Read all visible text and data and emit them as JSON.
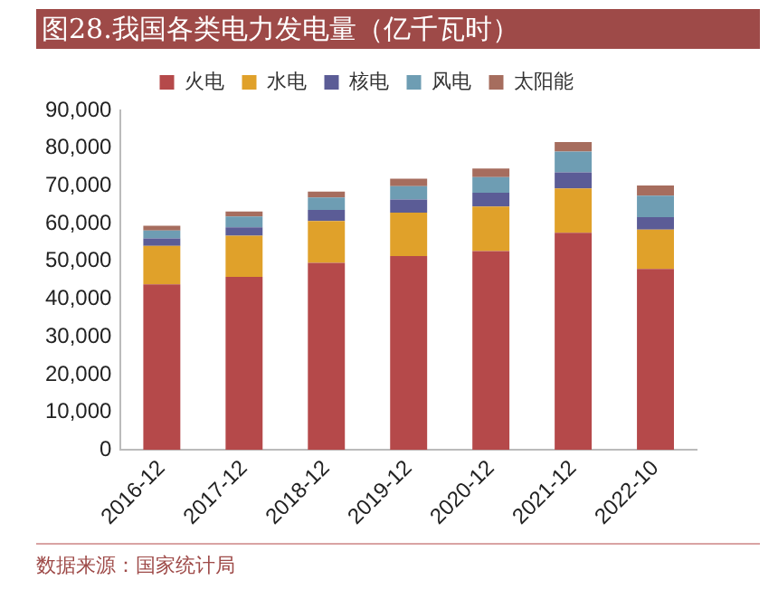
{
  "chart_data": {
    "type": "bar",
    "title": "图28.我国各类电力发电量（亿千瓦时）",
    "stacked": true,
    "legend": "top",
    "grid": false,
    "categories": [
      "2016-12",
      "2017-12",
      "2018-12",
      "2019-12",
      "2020-12",
      "2021-12",
      "2022-10"
    ],
    "series": [
      {
        "name": "火电",
        "color": "#b5494a",
        "values": [
          43900,
          45900,
          49600,
          51400,
          52700,
          57600,
          48000
        ]
      },
      {
        "name": "水电",
        "color": "#e0a12a",
        "values": [
          10200,
          10900,
          11100,
          11500,
          11800,
          11700,
          10400
        ]
      },
      {
        "name": "核电",
        "color": "#5b5c96",
        "values": [
          2000,
          2200,
          2900,
          3500,
          3700,
          4300,
          3300
        ]
      },
      {
        "name": "风电",
        "color": "#6e9db3",
        "values": [
          2100,
          2900,
          3300,
          3500,
          4100,
          5500,
          5700
        ]
      },
      {
        "name": "太阳能",
        "color": "#a66d5e",
        "values": [
          1200,
          1300,
          1600,
          2000,
          2300,
          2500,
          2700
        ]
      }
    ],
    "ylim": [
      0,
      90000
    ],
    "yticks": [
      0,
      {
        "value": 10000,
        "label": "10,000"
      },
      {
        "value": 20000,
        "label": "20,000"
      },
      {
        "value": 30000,
        "label": "30,000"
      },
      {
        "value": 40000,
        "label": "40,000"
      },
      {
        "value": 50000,
        "label": "50,000"
      },
      {
        "value": 60000,
        "label": "60,000"
      },
      {
        "value": 70000,
        "label": "70,000"
      },
      {
        "value": 80000,
        "label": "80,000"
      },
      {
        "value": 90000,
        "label": "90,000"
      }
    ],
    "annotations": [
      "数据来源：国家统计局"
    ]
  }
}
